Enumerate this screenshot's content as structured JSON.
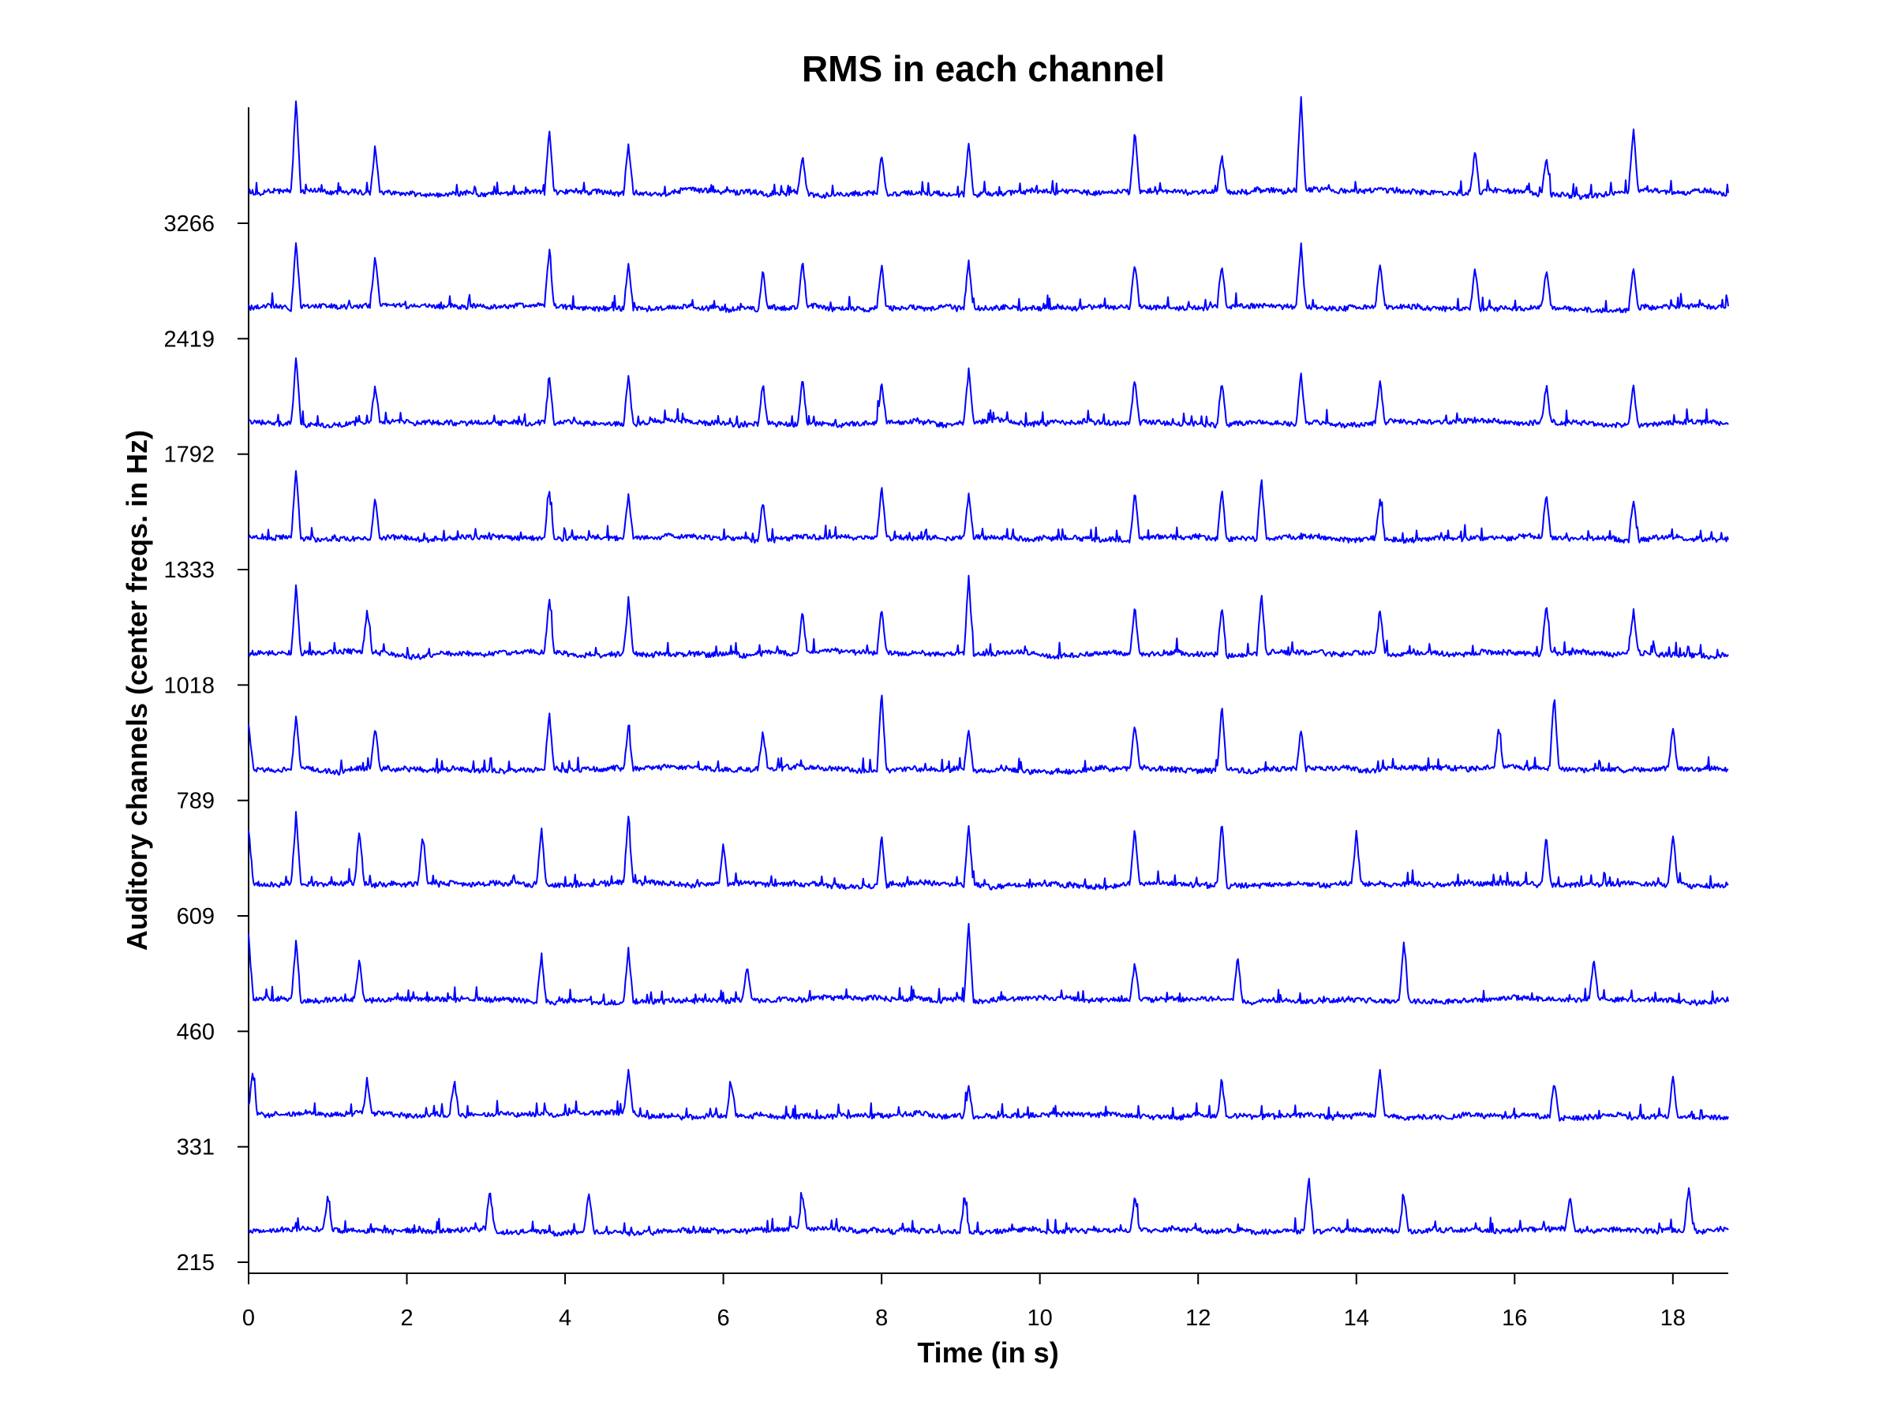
{
  "chart_data": {
    "type": "line",
    "title": "RMS in each channel",
    "xlabel": "Time (in s)",
    "ylabel": "Auditory channels (center freqs. in Hz)",
    "xlim": [
      0,
      18.7
    ],
    "x_ticks": [
      0,
      2,
      4,
      6,
      8,
      10,
      12,
      14,
      16,
      18
    ],
    "x_tick_labels": [
      "0",
      "2",
      "4",
      "6",
      "8",
      "10",
      "12",
      "14",
      "16",
      "18"
    ],
    "y_tick_labels": [
      "215",
      "331",
      "460",
      "609",
      "789",
      "1018",
      "1333",
      "1792",
      "2419",
      "3266"
    ],
    "grid": false,
    "legend": "none",
    "series_color": "#0000ff",
    "series": [
      {
        "channel_hz": 215,
        "seed": 11,
        "spikes": [
          [
            1.0,
            1.0
          ],
          [
            3.05,
            1.2
          ],
          [
            4.3,
            1.3
          ],
          [
            7.0,
            1.1
          ],
          [
            9.05,
            1.0
          ],
          [
            11.2,
            1.1
          ],
          [
            13.4,
            1.7
          ],
          [
            14.6,
            1.2
          ],
          [
            16.7,
            1.1
          ],
          [
            18.2,
            1.4
          ]
        ]
      },
      {
        "channel_hz": 331,
        "seed": 23,
        "spikes": [
          [
            0.05,
            1.3
          ],
          [
            1.5,
            1.0
          ],
          [
            2.6,
            1.1
          ],
          [
            4.8,
            1.3
          ],
          [
            6.1,
            1.1
          ],
          [
            9.1,
            1.0
          ],
          [
            12.3,
            1.1
          ],
          [
            14.3,
            1.5
          ],
          [
            16.5,
            1.2
          ],
          [
            18.0,
            1.3
          ]
        ]
      },
      {
        "channel_hz": 460,
        "seed": 37,
        "spikes": [
          [
            0.0,
            2.0
          ],
          [
            0.6,
            1.9
          ],
          [
            1.4,
            1.3
          ],
          [
            3.7,
            1.4
          ],
          [
            4.8,
            1.7
          ],
          [
            6.3,
            1.1
          ],
          [
            9.1,
            2.5
          ],
          [
            11.2,
            1.2
          ],
          [
            12.5,
            1.4
          ],
          [
            14.6,
            1.9
          ],
          [
            17.0,
            1.2
          ]
        ]
      },
      {
        "channel_hz": 609,
        "seed": 41,
        "spikes": [
          [
            0.0,
            1.8
          ],
          [
            0.6,
            2.2
          ],
          [
            1.4,
            1.7
          ],
          [
            2.2,
            1.5
          ],
          [
            3.7,
            1.8
          ],
          [
            4.8,
            2.0
          ],
          [
            6.0,
            1.3
          ],
          [
            8.0,
            1.6
          ],
          [
            9.1,
            1.9
          ],
          [
            11.2,
            1.8
          ],
          [
            12.3,
            2.1
          ],
          [
            14.0,
            1.6
          ],
          [
            16.4,
            1.5
          ],
          [
            18.0,
            1.6
          ]
        ]
      },
      {
        "channel_hz": 789,
        "seed": 53,
        "spikes": [
          [
            0.0,
            1.4
          ],
          [
            0.6,
            1.7
          ],
          [
            1.6,
            1.4
          ],
          [
            3.8,
            1.8
          ],
          [
            4.8,
            1.3
          ],
          [
            6.5,
            1.2
          ],
          [
            8.0,
            2.5
          ],
          [
            9.1,
            1.3
          ],
          [
            11.2,
            1.5
          ],
          [
            12.3,
            2.1
          ],
          [
            13.3,
            1.3
          ],
          [
            15.8,
            1.3
          ],
          [
            16.5,
            2.3
          ],
          [
            18.0,
            1.3
          ]
        ]
      },
      {
        "channel_hz": 1018,
        "seed": 67,
        "spikes": [
          [
            0.6,
            2.2
          ],
          [
            1.5,
            1.3
          ],
          [
            3.8,
            1.8
          ],
          [
            4.8,
            1.7
          ],
          [
            7.0,
            1.3
          ],
          [
            8.0,
            1.4
          ],
          [
            9.1,
            2.5
          ],
          [
            11.2,
            1.5
          ],
          [
            12.3,
            1.6
          ],
          [
            12.8,
            1.9
          ],
          [
            14.3,
            1.4
          ],
          [
            16.4,
            1.6
          ],
          [
            17.5,
            1.3
          ]
        ]
      },
      {
        "channel_hz": 1333,
        "seed": 71,
        "spikes": [
          [
            0.6,
            2.2
          ],
          [
            1.6,
            1.3
          ],
          [
            3.8,
            1.6
          ],
          [
            4.8,
            1.4
          ],
          [
            6.5,
            1.3
          ],
          [
            8.0,
            1.7
          ],
          [
            9.1,
            1.4
          ],
          [
            11.2,
            1.5
          ],
          [
            12.3,
            1.6
          ],
          [
            12.8,
            1.9
          ],
          [
            14.3,
            1.3
          ],
          [
            16.4,
            1.4
          ],
          [
            17.5,
            1.3
          ]
        ]
      },
      {
        "channel_hz": 1792,
        "seed": 83,
        "spikes": [
          [
            0.6,
            2.2
          ],
          [
            1.6,
            1.2
          ],
          [
            3.8,
            1.4
          ],
          [
            4.8,
            1.6
          ],
          [
            6.5,
            1.3
          ],
          [
            7.0,
            1.5
          ],
          [
            8.0,
            1.3
          ],
          [
            9.1,
            1.7
          ],
          [
            11.2,
            1.5
          ],
          [
            12.3,
            1.4
          ],
          [
            13.3,
            1.6
          ],
          [
            14.3,
            1.3
          ],
          [
            16.4,
            1.2
          ],
          [
            17.5,
            1.3
          ]
        ]
      },
      {
        "channel_hz": 2419,
        "seed": 97,
        "spikes": [
          [
            0.6,
            2.2
          ],
          [
            1.6,
            1.6
          ],
          [
            3.8,
            1.8
          ],
          [
            4.8,
            1.5
          ],
          [
            6.5,
            1.2
          ],
          [
            7.0,
            1.5
          ],
          [
            8.0,
            1.4
          ],
          [
            9.1,
            1.5
          ],
          [
            11.2,
            1.4
          ],
          [
            12.3,
            1.3
          ],
          [
            13.3,
            2.0
          ],
          [
            14.3,
            1.4
          ],
          [
            15.5,
            1.3
          ],
          [
            16.4,
            1.2
          ],
          [
            17.5,
            1.4
          ]
        ]
      },
      {
        "channel_hz": 3266,
        "seed": 103,
        "spikes": [
          [
            0.6,
            3.0
          ],
          [
            1.6,
            1.5
          ],
          [
            3.8,
            2.0
          ],
          [
            4.8,
            1.6
          ],
          [
            7.0,
            1.2
          ],
          [
            8.0,
            1.3
          ],
          [
            9.1,
            1.7
          ],
          [
            11.2,
            1.9
          ],
          [
            12.3,
            1.2
          ],
          [
            13.3,
            3.0
          ],
          [
            15.5,
            1.4
          ],
          [
            16.4,
            1.2
          ],
          [
            17.5,
            2.0
          ]
        ]
      }
    ]
  }
}
